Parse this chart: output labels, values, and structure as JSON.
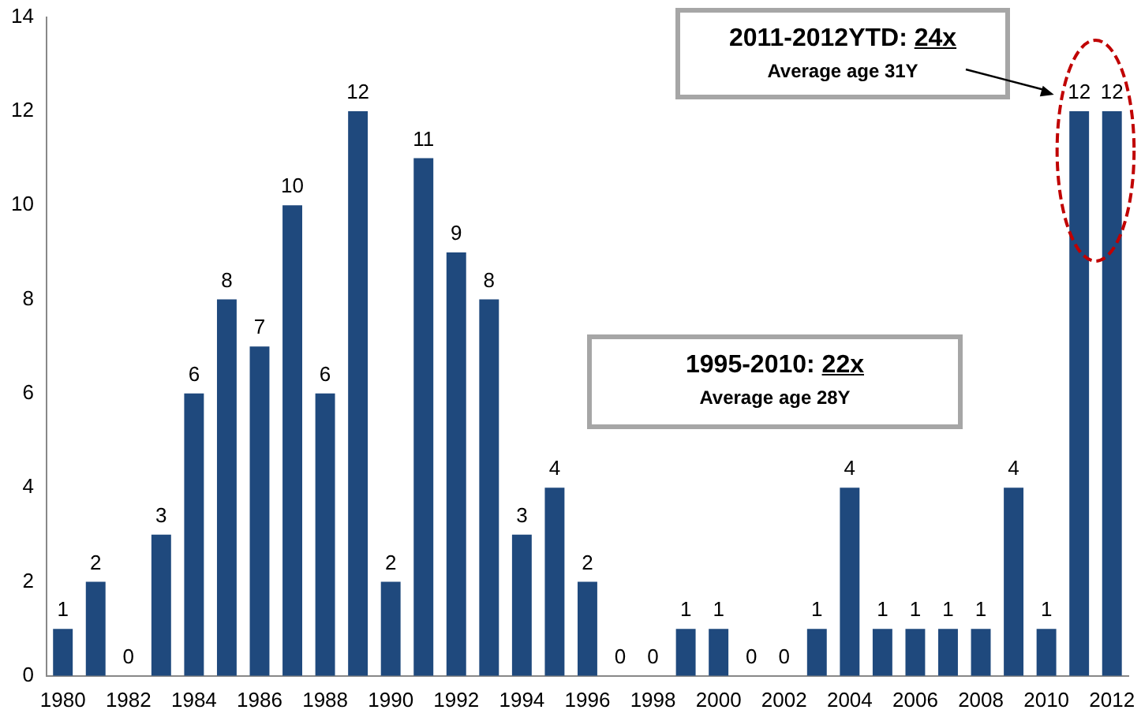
{
  "chart_data": {
    "type": "bar",
    "categories": [
      "1980",
      null,
      "1982",
      null,
      "1984",
      null,
      "1986",
      null,
      "1988",
      null,
      "1990",
      null,
      "1992",
      null,
      "1994",
      null,
      "1996",
      null,
      "1998",
      null,
      "2000",
      null,
      "2002",
      null,
      "2004",
      null,
      "2006",
      null,
      "2008",
      null,
      "2010",
      null,
      "2012"
    ],
    "values": [
      1,
      2,
      0,
      3,
      6,
      8,
      7,
      10,
      6,
      12,
      2,
      11,
      9,
      8,
      3,
      4,
      2,
      0,
      0,
      1,
      1,
      0,
      0,
      1,
      4,
      1,
      1,
      1,
      1,
      4,
      1,
      12,
      12
    ],
    "color": "#1f497d",
    "ylim": [
      0,
      14
    ],
    "yticks": [
      0,
      2,
      4,
      6,
      8,
      10,
      12,
      14
    ],
    "grid": false,
    "legend": false,
    "data_labels": true,
    "annotations": [
      "2011-2012YTD: 24x",
      "Average age 31Y",
      "1995-2010: 22x",
      "Average age 28Y"
    ]
  }
}
